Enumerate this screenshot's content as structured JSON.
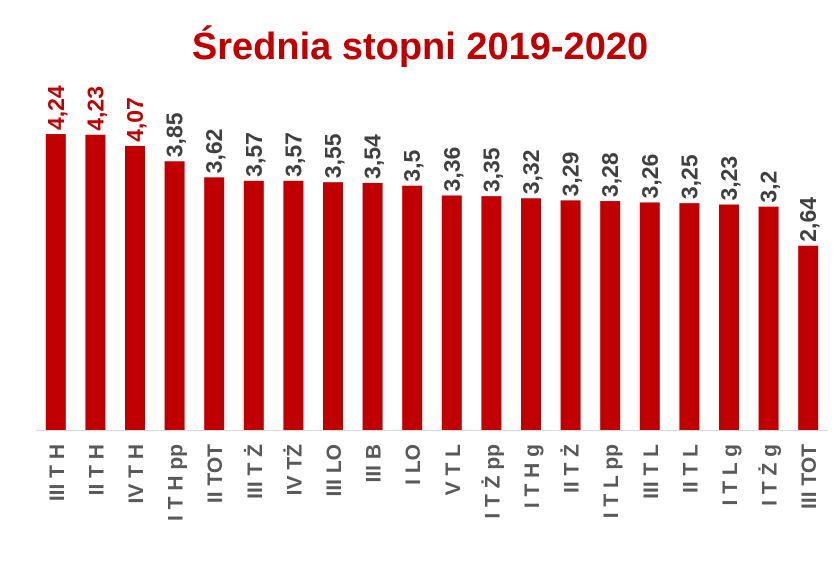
{
  "chart_data": {
    "type": "bar",
    "title": "Średnia stopni 2019-2020",
    "xlabel": "",
    "ylabel": "",
    "ylim": [
      0,
      5
    ],
    "grid": false,
    "legend": "none",
    "categories": [
      "III T H",
      "II T H",
      "IV T H",
      "I T H pp",
      "II TOT",
      "III T Ż",
      "IV TŻ",
      "III LO",
      "III B",
      "I LO",
      "V T L",
      "I T Ż pp",
      "I T H g",
      "II T Ż",
      "I T L pp",
      "III T L",
      "II T L",
      "I T L g",
      "I T Ż g",
      "III TOT"
    ],
    "values": [
      4.24,
      4.23,
      4.07,
      3.85,
      3.62,
      3.57,
      3.57,
      3.55,
      3.54,
      3.5,
      3.36,
      3.35,
      3.32,
      3.29,
      3.28,
      3.26,
      3.25,
      3.23,
      3.2,
      2.64
    ],
    "data_labels": [
      "4,24",
      "4,23",
      "4,07",
      "3,85",
      "3,62",
      "3,57",
      "3,57",
      "3,55",
      "3,54",
      "3,5",
      "3,36",
      "3,35",
      "3,32",
      "3,29",
      "3,28",
      "3,26",
      "3,25",
      "3,23",
      "3,2",
      "2,64"
    ],
    "highlighted_top": 3,
    "colors": {
      "bar": "#c00000",
      "title": "#c00000",
      "highlight_label": "#c00000",
      "label": "#404040",
      "axis_line": "#d9d9d9",
      "category_label": "#595959"
    }
  }
}
